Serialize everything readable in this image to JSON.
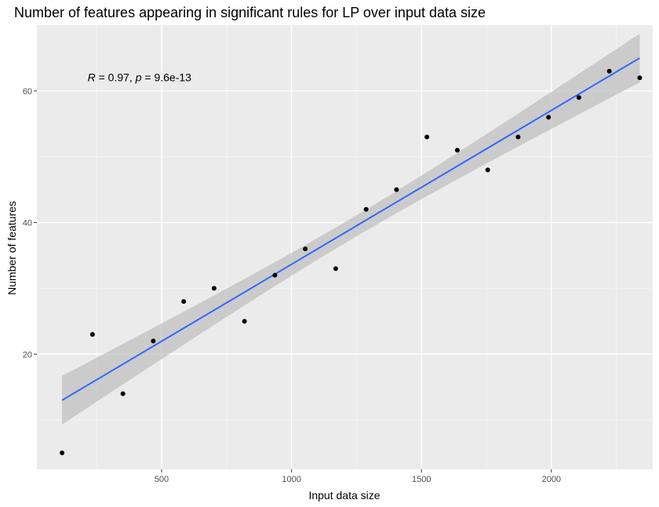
{
  "chart_data": {
    "type": "scatter",
    "title": "Number of features appearing in significant rules for LP over input data size",
    "xlabel": "Input data size",
    "ylabel": "Number of features",
    "xlim": [
      20,
      2390
    ],
    "ylim": [
      2.5,
      70
    ],
    "x_ticks": [
      500,
      1000,
      1500,
      2000
    ],
    "x_minor_ticks": [
      250,
      750,
      1250,
      1750,
      2250
    ],
    "y_ticks": [
      20,
      40,
      60
    ],
    "y_minor_ticks": [
      10,
      30,
      50,
      70
    ],
    "grid": true,
    "points": [
      {
        "x": 117,
        "y": 5
      },
      {
        "x": 234,
        "y": 23
      },
      {
        "x": 351,
        "y": 14
      },
      {
        "x": 468,
        "y": 22
      },
      {
        "x": 585,
        "y": 28
      },
      {
        "x": 702,
        "y": 30
      },
      {
        "x": 819,
        "y": 25
      },
      {
        "x": 936,
        "y": 32
      },
      {
        "x": 1053,
        "y": 36
      },
      {
        "x": 1170,
        "y": 33
      },
      {
        "x": 1287,
        "y": 42
      },
      {
        "x": 1404,
        "y": 45
      },
      {
        "x": 1521,
        "y": 53
      },
      {
        "x": 1638,
        "y": 51
      },
      {
        "x": 1755,
        "y": 48
      },
      {
        "x": 1872,
        "y": 53
      },
      {
        "x": 1989,
        "y": 56
      },
      {
        "x": 2106,
        "y": 59
      },
      {
        "x": 2223,
        "y": 63
      },
      {
        "x": 2340,
        "y": 62
      }
    ],
    "regression": {
      "method": "lm",
      "x0": 117,
      "y0": 13.0,
      "x1": 2340,
      "y1": 65.0,
      "ci_halfwidth_ends": 3.7,
      "ci_halfwidth_center": 1.6
    },
    "annotation": {
      "r_symbol": "R",
      "r_value": " = 0.97, ",
      "p_symbol": "p",
      "p_value": " = 9.6e-13",
      "x": 215,
      "y": 61.5
    },
    "colors": {
      "panel": "#ebebeb",
      "grid_major": "#ffffff",
      "grid_minor": "#f5f5f5",
      "point": "#000000",
      "line": "#3366ff",
      "ribbon": "#bdbdbd"
    }
  }
}
